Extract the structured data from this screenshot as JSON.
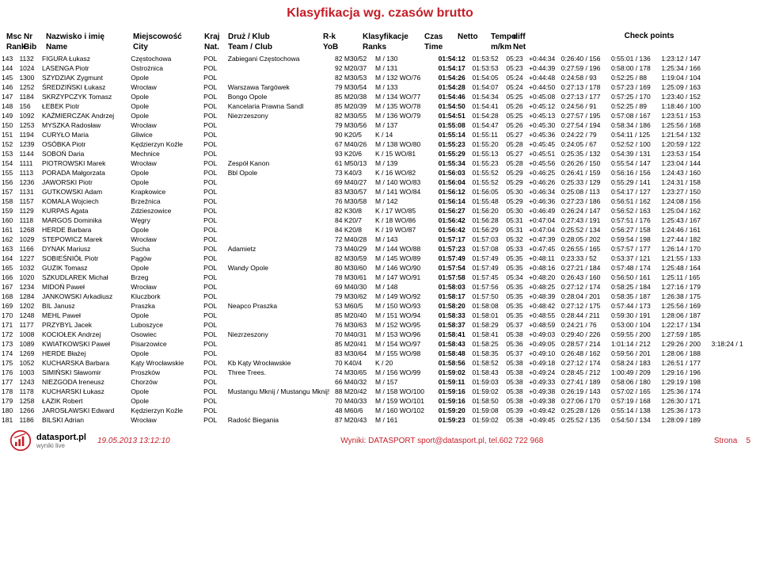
{
  "title": "Klasyfikacja wg. czasów brutto",
  "columns": {
    "msc": [
      "Msc",
      "Rank"
    ],
    "nr": [
      "Nr",
      "Bib"
    ],
    "name": [
      "Nazwisko i imię",
      "Name"
    ],
    "city": [
      "Miejscowość",
      "City"
    ],
    "nat": [
      "Kraj",
      "Nat."
    ],
    "team": [
      "Druż / Klub",
      "Team / Club"
    ],
    "rk": [
      "R-k",
      "YoB"
    ],
    "klas": [
      "Klasyfikacje",
      "Ranks"
    ],
    "czas": [
      "Czas",
      "Time"
    ],
    "netto": [
      "",
      "Netto"
    ],
    "tempo": [
      "Tempo",
      "m/km"
    ],
    "diff": [
      "diff",
      "Net"
    ],
    "check": "Check points"
  },
  "rows": [
    {
      "msc": "143",
      "nr": "1132",
      "name": "FIGURA Łukasz",
      "city": "Częstochowa",
      "nat": "POL",
      "team": "Zabiegani Częstochowa",
      "rk": "82 M30/52",
      "klas": "M / 130",
      "czas": "01:54:12",
      "netto": "01:53:52",
      "tempo": "05:23",
      "diff": "+0:44:34",
      "cp": [
        "0:26:40 / 156",
        "0:55:01 / 136",
        "1:23:12 / 147"
      ]
    },
    {
      "msc": "144",
      "nr": "1024",
      "name": "LASENGA Piotr",
      "city": "Ostrożnica",
      "nat": "POL",
      "team": "",
      "rk": "92 M20/37",
      "klas": "M / 131",
      "czas": "01:54:17",
      "netto": "01:53:53",
      "tempo": "05:23",
      "diff": "+0:44:39",
      "cp": [
        "0:27:59 / 196",
        "0:58:00 / 178",
        "1:25:34 / 166"
      ]
    },
    {
      "msc": "145",
      "nr": "1300",
      "name": "SZYDZIAK Zygmunt",
      "city": "Opole",
      "nat": "POL",
      "team": "",
      "rk": "82 M30/53",
      "klas": "M / 132 WO/76",
      "czas": "01:54:26",
      "netto": "01:54:05",
      "tempo": "05:24",
      "diff": "+0:44:48",
      "cp": [
        "0:24:58 / 93",
        "0:52:25 / 88",
        "1:19:04 / 104"
      ]
    },
    {
      "msc": "146",
      "nr": "1252",
      "name": "ŚREDZIŃSKI Łukasz",
      "city": "Wrocław",
      "nat": "POL",
      "team": "Warszawa Targówek",
      "rk": "79 M30/54",
      "klas": "M / 133",
      "czas": "01:54:28",
      "netto": "01:54:07",
      "tempo": "05:24",
      "diff": "+0:44:50",
      "cp": [
        "0:27:13 / 178",
        "0:57:23 / 169",
        "1:25:09 / 163"
      ]
    },
    {
      "msc": "147",
      "nr": "1184",
      "name": "SKRZYPCZYK Tomasz",
      "city": "Opole",
      "nat": "POL",
      "team": "Bongo Opole",
      "rk": "85 M20/38",
      "klas": "M / 134 WO/77",
      "czas": "01:54:46",
      "netto": "01:54:34",
      "tempo": "05:25",
      "diff": "+0:45:08",
      "cp": [
        "0:27:13 / 177",
        "0:57:25 / 170",
        "1:23:40 / 152"
      ]
    },
    {
      "msc": "148",
      "nr": "156",
      "name": "ŁEBEK Piotr",
      "city": "Opole",
      "nat": "POL",
      "team": "Kancelaria Prawna Sandl",
      "rk": "85 M20/39",
      "klas": "M / 135 WO/78",
      "czas": "01:54:50",
      "netto": "01:54:41",
      "tempo": "05:26",
      "diff": "+0:45:12",
      "cp": [
        "0:24:56 / 91",
        "0:52:25 / 89",
        "1:18:46 / 100"
      ]
    },
    {
      "msc": "149",
      "nr": "1092",
      "name": "KAŹMIERCZAK Andrzej",
      "city": "Opole",
      "nat": "POL",
      "team": "Niezrzeszony",
      "rk": "82 M30/55",
      "klas": "M / 136 WO/79",
      "czas": "01:54:51",
      "netto": "01:54:28",
      "tempo": "05:25",
      "diff": "+0:45:13",
      "cp": [
        "0:27:57 / 195",
        "0:57:08 / 167",
        "1:23:51 / 153"
      ]
    },
    {
      "msc": "150",
      "nr": "1253",
      "name": "MYSZKA Radosław",
      "city": "Wrocław",
      "nat": "POL",
      "team": "",
      "rk": "79 M30/56",
      "klas": "M / 137",
      "czas": "01:55:08",
      "netto": "01:54:47",
      "tempo": "05:26",
      "diff": "+0:45:30",
      "cp": [
        "0:27:54 / 194",
        "0:58:34 / 186",
        "1:25:56 / 168"
      ]
    },
    {
      "msc": "151",
      "nr": "1194",
      "name": "CURYŁO Maria",
      "city": "Gliwice",
      "nat": "POL",
      "team": "",
      "rk": "90 K20/5",
      "klas": "K / 14",
      "czas": "01:55:14",
      "netto": "01:55:11",
      "tempo": "05:27",
      "diff": "+0:45:36",
      "cp": [
        "0:24:22 / 79",
        "0:54:11 / 125",
        "1:21:54 / 132"
      ]
    },
    {
      "msc": "152",
      "nr": "1239",
      "name": "OSÓBKA Piotr",
      "city": "Kędzierzyn Koźle",
      "nat": "POL",
      "team": "",
      "rk": "67 M40/26",
      "klas": "M / 138 WO/80",
      "czas": "01:55:23",
      "netto": "01:55:20",
      "tempo": "05:28",
      "diff": "+0:45:45",
      "cp": [
        "0:24:05 / 67",
        "0:52:52 / 100",
        "1:20:59 / 122"
      ]
    },
    {
      "msc": "153",
      "nr": "1144",
      "name": "SOBOŃ Daria",
      "city": "Mechnice",
      "nat": "POL",
      "team": "",
      "rk": "93 K20/6",
      "klas": "K / 15   WO/81",
      "czas": "01:55:29",
      "netto": "01:55:13",
      "tempo": "05:27",
      "diff": "+0:45:51",
      "cp": [
        "0:25:35 / 132",
        "0:54:39 / 131",
        "1:23:53 / 154"
      ]
    },
    {
      "msc": "154",
      "nr": "1111",
      "name": "PIOTROWSKI Marek",
      "city": "Wrocław",
      "nat": "POL",
      "team": "Zespół Kanon",
      "rk": "61 M50/13",
      "klas": "M / 139",
      "czas": "01:55:34",
      "netto": "01:55:23",
      "tempo": "05:28",
      "diff": "+0:45:56",
      "cp": [
        "0:26:26 / 150",
        "0:55:54 / 147",
        "1:23:04 / 144"
      ]
    },
    {
      "msc": "155",
      "nr": "1113",
      "name": "PORADA Małgorzata",
      "city": "Opole",
      "nat": "POL",
      "team": "Bbl Opole",
      "rk": "73 K40/3",
      "klas": "K / 16   WO/82",
      "czas": "01:56:03",
      "netto": "01:55:52",
      "tempo": "05:29",
      "diff": "+0:46:25",
      "cp": [
        "0:26:41 / 159",
        "0:56:16 / 156",
        "1:24:43 / 160"
      ]
    },
    {
      "msc": "156",
      "nr": "1236",
      "name": "JAWORSKI Piotr",
      "city": "Opole",
      "nat": "POL",
      "team": "",
      "rk": "69 M40/27",
      "klas": "M / 140 WO/83",
      "czas": "01:56:04",
      "netto": "01:55:52",
      "tempo": "05:29",
      "diff": "+0:46:26",
      "cp": [
        "0:25:33 / 129",
        "0:55:29 / 141",
        "1:24:31 / 158"
      ]
    },
    {
      "msc": "157",
      "nr": "1131",
      "name": "GUTKOWSKI Adam",
      "city": "Krapkowice",
      "nat": "POL",
      "team": "",
      "rk": "83 M30/57",
      "klas": "M / 141 WO/84",
      "czas": "01:56:12",
      "netto": "01:56:05",
      "tempo": "05:30",
      "diff": "+0:46:34",
      "cp": [
        "0:25:08 / 113",
        "0:54:17 / 127",
        "1:23:27 / 150"
      ]
    },
    {
      "msc": "158",
      "nr": "1157",
      "name": "KOMALA Wojciech",
      "city": "Brzeźnica",
      "nat": "POL",
      "team": "",
      "rk": "76 M30/58",
      "klas": "M / 142",
      "czas": "01:56:14",
      "netto": "01:55:48",
      "tempo": "05:29",
      "diff": "+0:46:36",
      "cp": [
        "0:27:23 / 186",
        "0:56:51 / 162",
        "1:24:08 / 156"
      ]
    },
    {
      "msc": "159",
      "nr": "1129",
      "name": "KURPAS Agata",
      "city": "Zdzieszowice",
      "nat": "POL",
      "team": "",
      "rk": "82 K30/8",
      "klas": "K / 17   WO/85",
      "czas": "01:56:27",
      "netto": "01:56:20",
      "tempo": "05:30",
      "diff": "+0:46:49",
      "cp": [
        "0:26:24 / 147",
        "0:56:52 / 163",
        "1:25:04 / 162"
      ]
    },
    {
      "msc": "160",
      "nr": "1118",
      "name": "MARGOS Dominika",
      "city": "Węgry",
      "nat": "POL",
      "team": "",
      "rk": "84 K20/7",
      "klas": "K / 18   WO/86",
      "czas": "01:56:42",
      "netto": "01:56:28",
      "tempo": "05:31",
      "diff": "+0:47:04",
      "cp": [
        "0:27:43 / 191",
        "0:57:51 / 176",
        "1:25:43 / 167"
      ]
    },
    {
      "msc": "161",
      "nr": "1268",
      "name": "HERDE Barbara",
      "city": "Opole",
      "nat": "POL",
      "team": "",
      "rk": "84 K20/8",
      "klas": "K / 19   WO/87",
      "czas": "01:56:42",
      "netto": "01:56:29",
      "tempo": "05:31",
      "diff": "+0:47:04",
      "cp": [
        "0:25:52 / 134",
        "0:56:27 / 158",
        "1:24:46 / 161"
      ]
    },
    {
      "msc": "162",
      "nr": "1029",
      "name": "STEPOWICZ Marek",
      "city": "Wrocław",
      "nat": "POL",
      "team": "",
      "rk": "72 M40/28",
      "klas": "M / 143",
      "czas": "01:57:17",
      "netto": "01:57:03",
      "tempo": "05:32",
      "diff": "+0:47:39",
      "cp": [
        "0:28:05 / 202",
        "0:59:54 / 198",
        "1:27:44 / 182"
      ]
    },
    {
      "msc": "163",
      "nr": "1166",
      "name": "DYNAK Mariusz",
      "city": "Sucha",
      "nat": "POL",
      "team": "Adamietz",
      "rk": "73 M40/29",
      "klas": "M / 144 WO/88",
      "czas": "01:57:23",
      "netto": "01:57:08",
      "tempo": "05:33",
      "diff": "+0:47:45",
      "cp": [
        "0:26:55 / 165",
        "0:57:57 / 177",
        "1:26:14 / 170"
      ]
    },
    {
      "msc": "164",
      "nr": "1227",
      "name": "SOBIEŚNIÓŁ Piotr",
      "city": "Pągów",
      "nat": "POL",
      "team": "",
      "rk": "82 M30/59",
      "klas": "M / 145 WO/89",
      "czas": "01:57:49",
      "netto": "01:57:49",
      "tempo": "05:35",
      "diff": "+0:48:11",
      "cp": [
        "0:23:33 / 52",
        "0:53:37 / 121",
        "1:21:55 / 133"
      ]
    },
    {
      "msc": "165",
      "nr": "1032",
      "name": "GUZIK Tomasz",
      "city": "Opole",
      "nat": "POL",
      "team": "Wandy Opole",
      "rk": "80 M30/60",
      "klas": "M / 146 WO/90",
      "czas": "01:57:54",
      "netto": "01:57:49",
      "tempo": "05:35",
      "diff": "+0:48:16",
      "cp": [
        "0:27:21 / 184",
        "0:57:48 / 174",
        "1:25:48 / 164"
      ]
    },
    {
      "msc": "166",
      "nr": "1020",
      "name": "SZKUDLAREK Michał",
      "city": "Brzeg",
      "nat": "POL",
      "team": "",
      "rk": "78 M30/61",
      "klas": "M / 147 WO/91",
      "czas": "01:57:58",
      "netto": "01:57:45",
      "tempo": "05:34",
      "diff": "+0:48:20",
      "cp": [
        "0:26:43 / 160",
        "0:56:50 / 161",
        "1:25:11 / 165"
      ]
    },
    {
      "msc": "167",
      "nr": "1234",
      "name": "MIDOŃ Paweł",
      "city": "Wrocław",
      "nat": "POL",
      "team": "",
      "rk": "69 M40/30",
      "klas": "M / 148",
      "czas": "01:58:03",
      "netto": "01:57:56",
      "tempo": "05:35",
      "diff": "+0:48:25",
      "cp": [
        "0:27:12 / 174",
        "0:58:25 / 184",
        "1:27:16 / 179"
      ]
    },
    {
      "msc": "168",
      "nr": "1284",
      "name": "JANKOWSKI Arkadiusz",
      "city": "Kluczbork",
      "nat": "POL",
      "team": "",
      "rk": "79 M30/62",
      "klas": "M / 149 WO/92",
      "czas": "01:58:17",
      "netto": "01:57:50",
      "tempo": "05:35",
      "diff": "+0:48:39",
      "cp": [
        "0:28:04 / 201",
        "0:58:35 / 187",
        "1:26:38 / 175"
      ]
    },
    {
      "msc": "169",
      "nr": "1202",
      "name": "BIL Janusz",
      "city": "Praszka",
      "nat": "POL",
      "team": "Neapco Praszka",
      "rk": "53 M60/5",
      "klas": "M / 150 WO/93",
      "czas": "01:58:20",
      "netto": "01:58:08",
      "tempo": "05:35",
      "diff": "+0:48:42",
      "cp": [
        "0:27:12 / 175",
        "0:57:44 / 173",
        "1:25:56 / 169"
      ]
    },
    {
      "msc": "170",
      "nr": "1248",
      "name": "MEHL Paweł",
      "city": "Opole",
      "nat": "POL",
      "team": "",
      "rk": "85 M20/40",
      "klas": "M / 151 WO/94",
      "czas": "01:58:33",
      "netto": "01:58:01",
      "tempo": "05:35",
      "diff": "+0:48:55",
      "cp": [
        "0:28:44 / 211",
        "0:59:30 / 191",
        "1:28:06 / 187"
      ]
    },
    {
      "msc": "171",
      "nr": "1177",
      "name": "PRZYBYL Jacek",
      "city": "Luboszyce",
      "nat": "POL",
      "team": "",
      "rk": "76 M30/63",
      "klas": "M / 152 WO/95",
      "czas": "01:58:37",
      "netto": "01:58:29",
      "tempo": "05:37",
      "diff": "+0:48:59",
      "cp": [
        "0:24:21 / 76",
        "0:53:00 / 104",
        "1:22:17 / 134"
      ]
    },
    {
      "msc": "172",
      "nr": "1008",
      "name": "KOCIOŁEK Andrzej",
      "city": "Osowiec",
      "nat": "POL",
      "team": "Niezrzeszony",
      "rk": "70 M40/31",
      "klas": "M / 153 WO/96",
      "czas": "01:58:41",
      "netto": "01:58:41",
      "tempo": "05:38",
      "diff": "+0:49:03",
      "cp": [
        "0:29:40 / 226",
        "0:59:55 / 200",
        "1:27:59 / 185"
      ]
    },
    {
      "msc": "173",
      "nr": "1089",
      "name": "KWIATKOWSKI Paweł",
      "city": "Pisarzowice",
      "nat": "POL",
      "team": "",
      "rk": "85 M20/41",
      "klas": "M / 154 WO/97",
      "czas": "01:58:43",
      "netto": "01:58:25",
      "tempo": "05:36",
      "diff": "+0:49:05",
      "cp": [
        "0:28:57 / 214",
        "1:01:14 / 212",
        "1:29:26 / 200",
        "3:18:24 / 1"
      ]
    },
    {
      "msc": "174",
      "nr": "1269",
      "name": "HERDE Błażej",
      "city": "Opole",
      "nat": "POL",
      "team": "",
      "rk": "83 M30/64",
      "klas": "M / 155 WO/98",
      "czas": "01:58:48",
      "netto": "01:58:35",
      "tempo": "05:37",
      "diff": "+0:49:10",
      "cp": [
        "0:26:48 / 162",
        "0:59:56 / 201",
        "1:28:06 / 188"
      ]
    },
    {
      "msc": "175",
      "nr": "1052",
      "name": "KUCHARSKA Barbara",
      "city": "Kąty Wrocławskie",
      "nat": "POL",
      "team": "Kb Kąty Wrocławskie",
      "rk": "70 K40/4",
      "klas": "K / 20",
      "czas": "01:58:56",
      "netto": "01:58:52",
      "tempo": "05:38",
      "diff": "+0:49:18",
      "cp": [
        "0:27:12 / 174",
        "0:58:24 / 183",
        "1:26:51 / 177"
      ]
    },
    {
      "msc": "176",
      "nr": "1003",
      "name": "SIMIŃSKI Sławomir",
      "city": "Proszków",
      "nat": "POL",
      "team": "Three Trees.",
      "rk": "74 M30/65",
      "klas": "M / 156 WO/99",
      "czas": "01:59:02",
      "netto": "01:58:43",
      "tempo": "05:38",
      "diff": "+0:49:24",
      "cp": [
        "0:28:45 / 212",
        "1:00:49 / 209",
        "1:29:16 / 196"
      ]
    },
    {
      "msc": "177",
      "nr": "1243",
      "name": "NIEZGODA Ireneusz",
      "city": "Chorzów",
      "nat": "POL",
      "team": "",
      "rk": "66 M40/32",
      "klas": "M / 157",
      "czas": "01:59:11",
      "netto": "01:59:03",
      "tempo": "05:38",
      "diff": "+0:49:33",
      "cp": [
        "0:27:41 / 189",
        "0:58:06 / 180",
        "1:29:19 / 198"
      ]
    },
    {
      "msc": "178",
      "nr": "1178",
      "name": "KUCHARSKI Łukasz",
      "city": "Opole",
      "nat": "POL",
      "team": "Mustangu Mknij / Mustangu Mknij!",
      "rk": "88 M20/42",
      "klas": "M / 158 WO/100",
      "czas": "01:59:16",
      "netto": "01:59:02",
      "tempo": "05:38",
      "diff": "+0:49:38",
      "cp": [
        "0:26:19 / 143",
        "0:57:02 / 165",
        "1:25:36 / 174"
      ]
    },
    {
      "msc": "179",
      "nr": "1258",
      "name": "ŁAZIK Robert",
      "city": "Opole",
      "nat": "POL",
      "team": "",
      "rk": "70 M40/33",
      "klas": "M / 159 WO/101",
      "czas": "01:59:16",
      "netto": "01:58:50",
      "tempo": "05:38",
      "diff": "+0:49:38",
      "cp": [
        "0:27:06 / 170",
        "0:57:19 / 168",
        "1:26:30 / 171"
      ]
    },
    {
      "msc": "180",
      "nr": "1266",
      "name": "JAROSŁAWSKI Edward",
      "city": "Kędzierzyn Koźle",
      "nat": "POL",
      "team": "",
      "rk": "48 M60/6",
      "klas": "M / 160 WO/102",
      "czas": "01:59:20",
      "netto": "01:59:08",
      "tempo": "05:39",
      "diff": "+0:49:42",
      "cp": [
        "0:25:28 / 126",
        "0:55:14 / 138",
        "1:25:36 / 173"
      ]
    },
    {
      "msc": "181",
      "nr": "1186",
      "name": "BILSKI Adrian",
      "city": "Wrocław",
      "nat": "POL",
      "team": "Radość Biegania",
      "rk": "87 M20/43",
      "klas": "M / 161",
      "czas": "01:59:23",
      "netto": "01:59:02",
      "tempo": "05:38",
      "diff": "+0:49:45",
      "cp": [
        "0:25:52 / 135",
        "0:54:50 / 134",
        "1:28:09 / 189"
      ]
    }
  ],
  "footer": {
    "timestamp": "19.05.2013 13:12:10",
    "wyniki": "Wyniki: DATASPORT sport@datasport.pl, tel.602 722 968",
    "page_label": "Strona",
    "page_num": "5",
    "logo_brand": "datasport.pl",
    "logo_sub": "wyniki live"
  }
}
